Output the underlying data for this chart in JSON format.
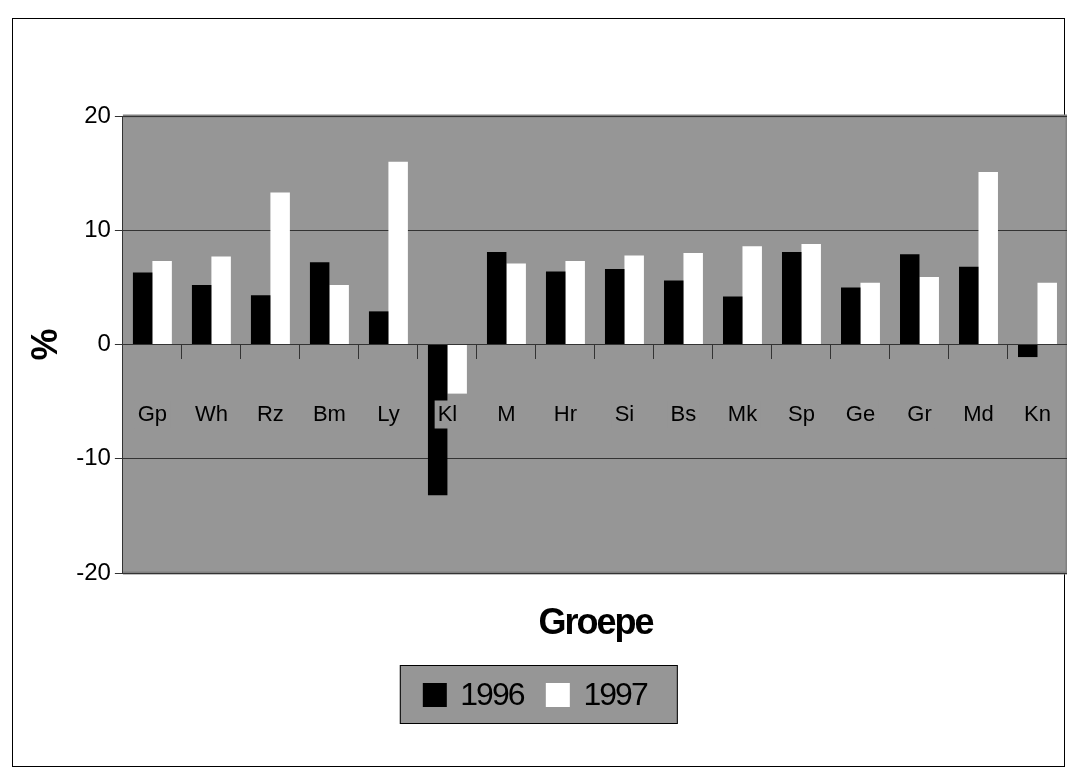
{
  "chart_data": {
    "type": "bar",
    "xlabel": "Groepe",
    "ylabel": "%",
    "categories": [
      "Gp",
      "Wh",
      "Rz",
      "Bm",
      "Ly",
      "Kl",
      "M",
      "Hr",
      "Si",
      "Bs",
      "Mk",
      "Sp",
      "Ge",
      "Gr",
      "Md",
      "Kn"
    ],
    "series": [
      {
        "name": "1996",
        "color": "#000000",
        "values": [
          6.3,
          5.2,
          4.3,
          7.2,
          2.9,
          -13.2,
          8.1,
          6.4,
          6.6,
          5.6,
          4.2,
          8.1,
          5.0,
          7.9,
          6.8,
          -1.1
        ]
      },
      {
        "name": "1997",
        "color": "#ffffff",
        "values": [
          7.3,
          7.7,
          13.3,
          5.2,
          16.0,
          -4.3,
          7.1,
          7.3,
          7.8,
          8.0,
          8.6,
          8.8,
          5.4,
          5.9,
          15.1,
          5.4
        ]
      }
    ],
    "ylim": [
      -20,
      20
    ],
    "yticks": [
      -20,
      -10,
      0,
      10,
      20
    ],
    "grid": "y",
    "legend": "bottom"
  }
}
